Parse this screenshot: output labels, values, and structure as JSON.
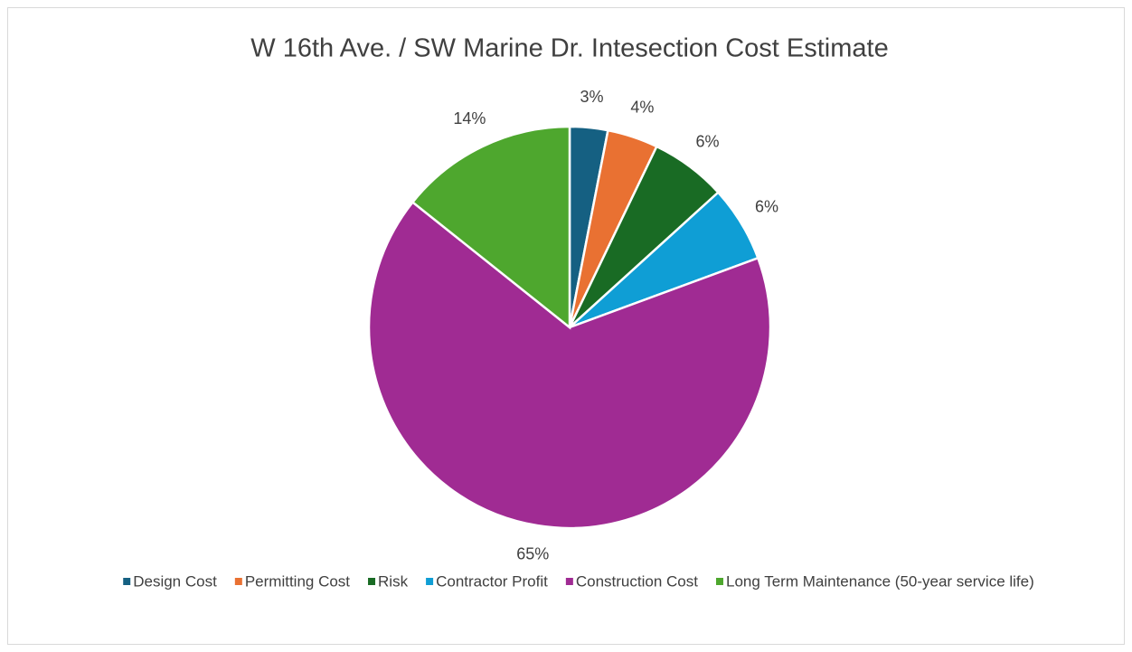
{
  "chart_data": {
    "type": "pie",
    "title": "W 16th Ave. / SW Marine Dr. Intesection Cost Estimate",
    "categories": [
      "Design Cost",
      "Permitting Cost",
      "Risk",
      "Contractor Profit",
      "Construction Cost",
      "Long Term Maintenance (50-year service life)"
    ],
    "values": [
      3,
      4,
      6,
      6,
      65,
      14
    ],
    "value_labels": [
      "3%",
      "4%",
      "6%",
      "6%",
      "65%",
      "14%"
    ],
    "colors": [
      "#156082",
      "#e97132",
      "#196b24",
      "#0f9ed5",
      "#a02b93",
      "#4ea72e"
    ],
    "legend": "bottom"
  }
}
